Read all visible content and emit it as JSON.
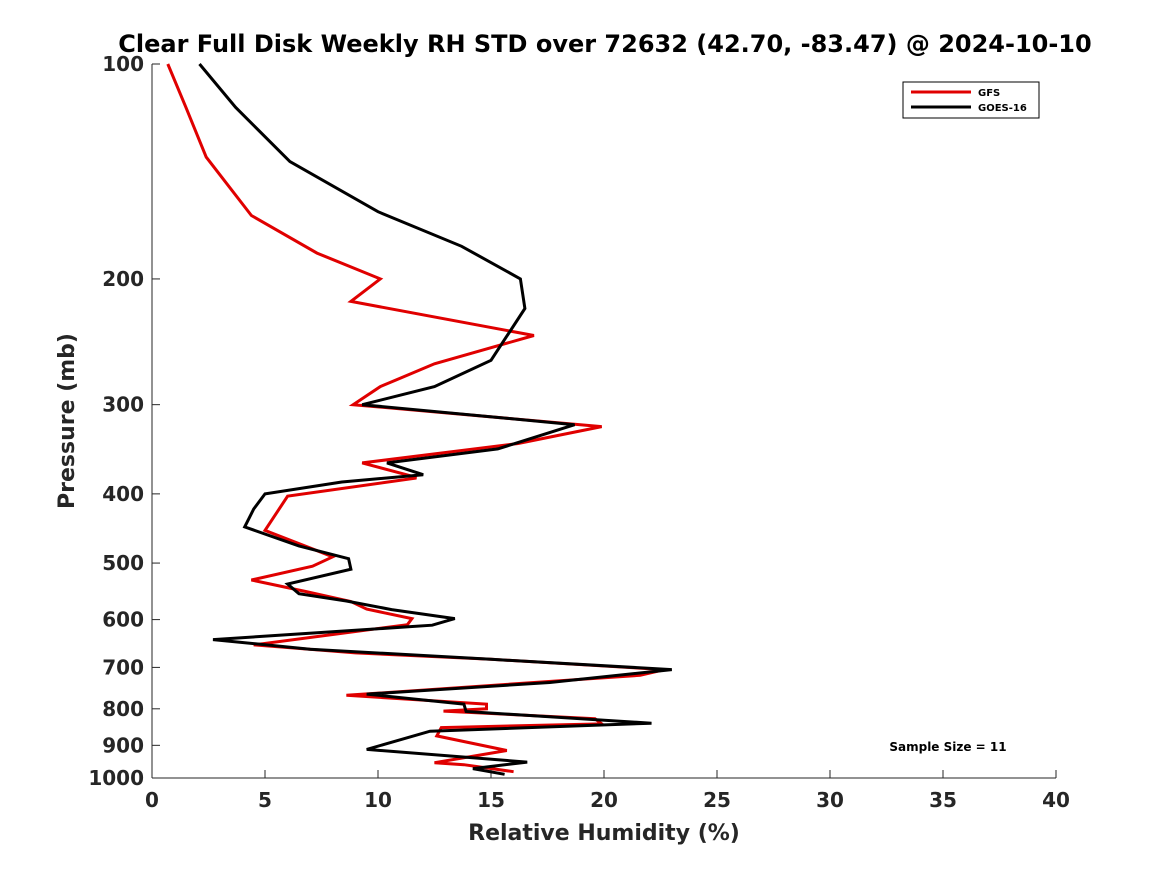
{
  "chart_data": {
    "type": "line",
    "title": "Clear Full Disk Weekly RH STD over 72632 (42.70, -83.47) @ 2024-10-10",
    "xlabel": "Relative Humidity (%)",
    "ylabel": "Pressure (mb)",
    "xlim": [
      0,
      40
    ],
    "ylim": [
      1000,
      100
    ],
    "yscale": "log",
    "y_reversed": true,
    "xticks": [
      0,
      5,
      10,
      15,
      20,
      25,
      30,
      35,
      40
    ],
    "yticks": [
      100,
      200,
      300,
      400,
      500,
      600,
      700,
      800,
      900,
      1000
    ],
    "grid": false,
    "legend_position": "top-right",
    "annotation": "Sample Size = 11",
    "series": [
      {
        "name": "GFS",
        "color": "#e00000",
        "points": [
          [
            0.7,
            100
          ],
          [
            1.5,
            115
          ],
          [
            2.4,
            135
          ],
          [
            4.4,
            163
          ],
          [
            7.3,
            184
          ],
          [
            10.1,
            200
          ],
          [
            8.8,
            215
          ],
          [
            16.9,
            240
          ],
          [
            12.5,
            263
          ],
          [
            10.1,
            283
          ],
          [
            8.9,
            300
          ],
          [
            19.9,
            322
          ],
          [
            16.2,
            340
          ],
          [
            9.3,
            362
          ],
          [
            11.4,
            377
          ],
          [
            11.7,
            380
          ],
          [
            6.0,
            403
          ],
          [
            5.0,
            450
          ],
          [
            8.0,
            490
          ],
          [
            7.1,
            505
          ],
          [
            4.4,
            528
          ],
          [
            6.8,
            548
          ],
          [
            8.8,
            566
          ],
          [
            9.5,
            580
          ],
          [
            11.5,
            598
          ],
          [
            11.3,
            610
          ],
          [
            4.5,
            651
          ],
          [
            9.0,
            668
          ],
          [
            15.0,
            682
          ],
          [
            22.7,
            705
          ],
          [
            21.6,
            718
          ],
          [
            8.6,
            766
          ],
          [
            14.8,
            788
          ],
          [
            14.8,
            800
          ],
          [
            12.9,
            806
          ],
          [
            19.6,
            826
          ],
          [
            19.9,
            840
          ],
          [
            12.8,
            850
          ],
          [
            12.6,
            873
          ],
          [
            15.7,
            915
          ],
          [
            12.5,
            952
          ],
          [
            13.8,
            958
          ],
          [
            16.0,
            980
          ]
        ]
      },
      {
        "name": "GOES-16",
        "color": "#000000",
        "points": [
          [
            2.1,
            100
          ],
          [
            3.7,
            115
          ],
          [
            6.1,
            137
          ],
          [
            10.0,
            161
          ],
          [
            13.7,
            180
          ],
          [
            16.3,
            200
          ],
          [
            16.5,
            220
          ],
          [
            15.0,
            260
          ],
          [
            12.5,
            283
          ],
          [
            9.3,
            300
          ],
          [
            18.7,
            320
          ],
          [
            15.3,
            346
          ],
          [
            10.4,
            362
          ],
          [
            12.0,
            376
          ],
          [
            8.4,
            385
          ],
          [
            5.0,
            400
          ],
          [
            4.5,
            420
          ],
          [
            4.1,
            445
          ],
          [
            6.5,
            473
          ],
          [
            8.7,
            493
          ],
          [
            8.8,
            510
          ],
          [
            6.0,
            535
          ],
          [
            6.5,
            552
          ],
          [
            8.6,
            565
          ],
          [
            10.6,
            581
          ],
          [
            13.4,
            598
          ],
          [
            12.4,
            611
          ],
          [
            2.7,
            640
          ],
          [
            7.0,
            660
          ],
          [
            15.0,
            682
          ],
          [
            23.0,
            705
          ],
          [
            17.6,
            735
          ],
          [
            9.5,
            763
          ],
          [
            13.8,
            788
          ],
          [
            13.9,
            807
          ],
          [
            22.1,
            838
          ],
          [
            12.3,
            860
          ],
          [
            9.5,
            912
          ],
          [
            16.6,
            950
          ],
          [
            14.2,
            970
          ],
          [
            15.6,
            988
          ]
        ]
      }
    ]
  }
}
